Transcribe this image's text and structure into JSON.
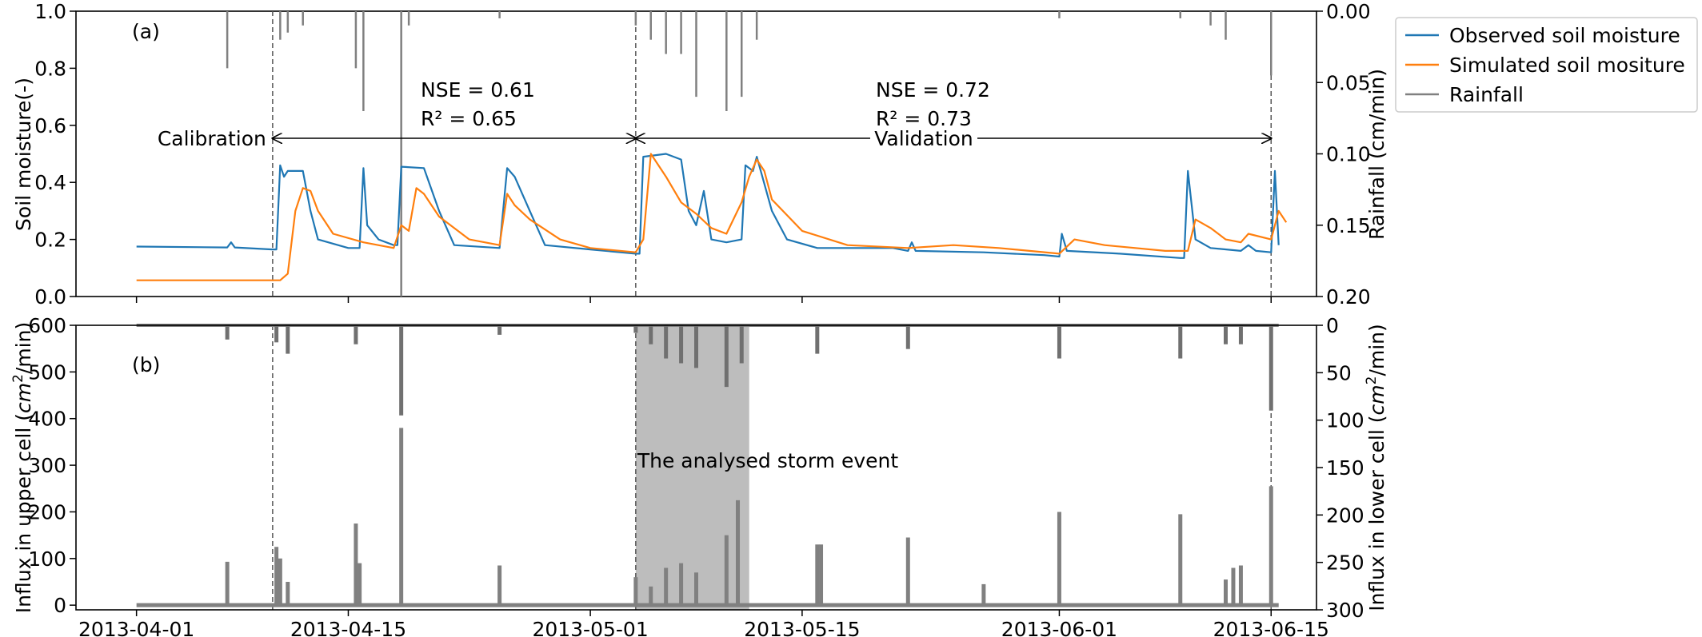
{
  "chart_data": [
    {
      "type": "line",
      "panel_label": "(a)",
      "ylabel": "Soil moisture(-)",
      "ylabel_right": "Rainfall (cm/min)",
      "xlim": [
        "2013-03-28",
        "2013-06-18"
      ],
      "ylim": [
        0,
        1.0
      ],
      "ylim_right": [
        0.2,
        0.0
      ],
      "right_axis_inverted": true,
      "x_ticks": [
        "2013-04-01",
        "2013-04-15",
        "2013-05-01",
        "2013-05-15",
        "2013-06-01",
        "2013-06-15"
      ],
      "y_ticks": [
        "0.0",
        "0.2",
        "0.4",
        "0.6",
        "0.8",
        "1.0"
      ],
      "y_ticks_right": [
        "0.00",
        "0.05",
        "0.10",
        "0.15",
        "0.20"
      ],
      "grid": false,
      "legend_position": "outside-top-right",
      "vlines_dashed": [
        "2013-04-10",
        "2013-05-04",
        "2013-06-15"
      ],
      "annotations": {
        "calibration": "Calibration",
        "validation": "Validation",
        "nse_cal": "NSE = 0.61",
        "r2_cal": "R² = 0.65",
        "nse_val": "NSE = 0.72",
        "r2_val": "R² = 0.73"
      },
      "series": [
        {
          "name": "Observed soil moisture",
          "color": "#1f77b4",
          "points": [
            [
              "2013-04-01",
              0.175
            ],
            [
              "2013-04-07",
              0.172
            ],
            [
              "2013-04-07T06",
              0.19
            ],
            [
              "2013-04-07T12",
              0.172
            ],
            [
              "2013-04-10",
              0.165
            ],
            [
              "2013-04-10T06",
              0.165
            ],
            [
              "2013-04-10T12",
              0.46
            ],
            [
              "2013-04-10T18",
              0.42
            ],
            [
              "2013-04-11",
              0.44
            ],
            [
              "2013-04-12",
              0.44
            ],
            [
              "2013-04-12T12",
              0.3
            ],
            [
              "2013-04-13",
              0.2
            ],
            [
              "2013-04-15",
              0.17
            ],
            [
              "2013-04-15T18",
              0.17
            ],
            [
              "2013-04-16",
              0.45
            ],
            [
              "2013-04-16T06",
              0.25
            ],
            [
              "2013-04-17",
              0.2
            ],
            [
              "2013-04-18",
              0.18
            ],
            [
              "2013-04-18T06",
              0.18
            ],
            [
              "2013-04-18T12",
              0.455
            ],
            [
              "2013-04-20",
              0.45
            ],
            [
              "2013-04-21",
              0.3
            ],
            [
              "2013-04-22",
              0.18
            ],
            [
              "2013-04-25",
              0.17
            ],
            [
              "2013-04-25T12",
              0.45
            ],
            [
              "2013-04-26",
              0.42
            ],
            [
              "2013-04-27",
              0.3
            ],
            [
              "2013-04-28",
              0.18
            ],
            [
              "2013-05-01",
              0.165
            ],
            [
              "2013-05-04",
              0.15
            ],
            [
              "2013-05-04T06",
              0.15
            ],
            [
              "2013-05-04T12",
              0.49
            ],
            [
              "2013-05-06",
              0.5
            ],
            [
              "2013-05-07",
              0.48
            ],
            [
              "2013-05-07T12",
              0.3
            ],
            [
              "2013-05-08",
              0.25
            ],
            [
              "2013-05-08T12",
              0.37
            ],
            [
              "2013-05-09",
              0.2
            ],
            [
              "2013-05-10",
              0.19
            ],
            [
              "2013-05-11",
              0.2
            ],
            [
              "2013-05-11T06",
              0.46
            ],
            [
              "2013-05-11T18",
              0.44
            ],
            [
              "2013-05-12",
              0.49
            ],
            [
              "2013-05-13",
              0.3
            ],
            [
              "2013-05-14",
              0.2
            ],
            [
              "2013-05-16",
              0.17
            ],
            [
              "2013-05-21",
              0.17
            ],
            [
              "2013-05-22",
              0.16
            ],
            [
              "2013-05-22T06",
              0.19
            ],
            [
              "2013-05-22T12",
              0.16
            ],
            [
              "2013-05-27",
              0.155
            ],
            [
              "2013-05-31",
              0.145
            ],
            [
              "2013-06-01",
              0.14
            ],
            [
              "2013-06-01T04",
              0.22
            ],
            [
              "2013-06-01T12",
              0.16
            ],
            [
              "2013-06-05",
              0.15
            ],
            [
              "2013-06-09",
              0.135
            ],
            [
              "2013-06-09T06",
              0.135
            ],
            [
              "2013-06-09T12",
              0.44
            ],
            [
              "2013-06-10",
              0.2
            ],
            [
              "2013-06-11",
              0.17
            ],
            [
              "2013-06-13",
              0.16
            ],
            [
              "2013-06-13T12",
              0.18
            ],
            [
              "2013-06-14",
              0.16
            ],
            [
              "2013-06-15",
              0.155
            ],
            [
              "2013-06-15T06",
              0.44
            ],
            [
              "2013-06-15T12",
              0.18
            ]
          ]
        },
        {
          "name": "Simulated soil mositure",
          "color": "#ff7f0e",
          "points": [
            [
              "2013-04-01",
              0.057
            ],
            [
              "2013-04-10T12",
              0.057
            ],
            [
              "2013-04-11",
              0.08
            ],
            [
              "2013-04-11T12",
              0.3
            ],
            [
              "2013-04-12",
              0.38
            ],
            [
              "2013-04-12T12",
              0.37
            ],
            [
              "2013-04-13",
              0.3
            ],
            [
              "2013-04-14",
              0.22
            ],
            [
              "2013-04-16",
              0.19
            ],
            [
              "2013-04-18",
              0.17
            ],
            [
              "2013-04-18T12",
              0.25
            ],
            [
              "2013-04-19",
              0.23
            ],
            [
              "2013-04-19T12",
              0.38
            ],
            [
              "2013-04-20",
              0.36
            ],
            [
              "2013-04-21",
              0.28
            ],
            [
              "2013-04-23",
              0.2
            ],
            [
              "2013-04-25",
              0.18
            ],
            [
              "2013-04-25T12",
              0.36
            ],
            [
              "2013-04-26",
              0.32
            ],
            [
              "2013-04-27",
              0.27
            ],
            [
              "2013-04-29",
              0.2
            ],
            [
              "2013-05-01",
              0.17
            ],
            [
              "2013-05-04",
              0.155
            ],
            [
              "2013-05-04T12",
              0.2
            ],
            [
              "2013-05-05",
              0.5
            ],
            [
              "2013-05-06",
              0.42
            ],
            [
              "2013-05-07",
              0.33
            ],
            [
              "2013-05-08",
              0.29
            ],
            [
              "2013-05-09",
              0.24
            ],
            [
              "2013-05-10",
              0.22
            ],
            [
              "2013-05-11",
              0.33
            ],
            [
              "2013-05-11T12",
              0.42
            ],
            [
              "2013-05-12",
              0.48
            ],
            [
              "2013-05-12T12",
              0.44
            ],
            [
              "2013-05-13",
              0.34
            ],
            [
              "2013-05-15",
              0.23
            ],
            [
              "2013-05-18",
              0.18
            ],
            [
              "2013-05-22",
              0.17
            ],
            [
              "2013-05-25",
              0.18
            ],
            [
              "2013-05-28",
              0.17
            ],
            [
              "2013-06-01",
              0.15
            ],
            [
              "2013-06-02",
              0.2
            ],
            [
              "2013-06-04",
              0.18
            ],
            [
              "2013-06-08",
              0.16
            ],
            [
              "2013-06-09T12",
              0.16
            ],
            [
              "2013-06-10",
              0.27
            ],
            [
              "2013-06-11",
              0.24
            ],
            [
              "2013-06-12",
              0.2
            ],
            [
              "2013-06-13",
              0.19
            ],
            [
              "2013-06-13T12",
              0.22
            ],
            [
              "2013-06-15",
              0.2
            ],
            [
              "2013-06-15T12",
              0.3
            ],
            [
              "2013-06-16",
              0.26
            ]
          ]
        },
        {
          "name": "Rainfall",
          "color": "#808080",
          "axis": "right",
          "units": "cm/min",
          "events": [
            [
              "2013-04-07",
              0.04
            ],
            [
              "2013-04-10T12",
              0.02
            ],
            [
              "2013-04-11",
              0.015
            ],
            [
              "2013-04-12",
              0.01
            ],
            [
              "2013-04-15T12",
              0.04
            ],
            [
              "2013-04-16",
              0.07
            ],
            [
              "2013-04-18T12",
              0.2
            ],
            [
              "2013-04-19",
              0.01
            ],
            [
              "2013-04-25",
              0.005
            ],
            [
              "2013-05-04",
              0.01
            ],
            [
              "2013-05-05",
              0.02
            ],
            [
              "2013-05-06",
              0.03
            ],
            [
              "2013-05-07",
              0.03
            ],
            [
              "2013-05-08",
              0.06
            ],
            [
              "2013-05-10",
              0.07
            ],
            [
              "2013-05-11",
              0.06
            ],
            [
              "2013-05-12",
              0.02
            ],
            [
              "2013-06-01",
              0.005
            ],
            [
              "2013-06-09",
              0.005
            ],
            [
              "2013-06-11",
              0.01
            ],
            [
              "2013-06-12",
              0.02
            ],
            [
              "2013-06-15",
              0.045
            ]
          ]
        }
      ]
    },
    {
      "type": "bar",
      "panel_label": "(b)",
      "ylabel": "Influx in upper cell (cm²/min)",
      "ylabel_right": "Influx in lower cell (cm²/min)",
      "xlim": [
        "2013-03-28",
        "2013-06-18"
      ],
      "ylim": [
        -10,
        600
      ],
      "ylim_right": [
        300,
        0
      ],
      "right_axis_inverted": true,
      "x_ticks": [
        "2013-04-01",
        "2013-04-15",
        "2013-05-01",
        "2013-05-15",
        "2013-06-01",
        "2013-06-15"
      ],
      "y_ticks": [
        "0",
        "100",
        "200",
        "300",
        "400",
        "500",
        "600"
      ],
      "y_ticks_right": [
        "0",
        "50",
        "100",
        "150",
        "200",
        "250",
        "300"
      ],
      "grid": false,
      "vlines_dashed": [
        "2013-04-10",
        "2013-05-04",
        "2013-06-15"
      ],
      "highlight": {
        "from": "2013-05-04",
        "to": "2013-05-11T12",
        "label": "The analysed storm event"
      },
      "series": [
        {
          "name": "Influx in upper cell",
          "color": "#808080",
          "events": [
            [
              "2013-04-07",
              93
            ],
            [
              "2013-04-10T06",
              125
            ],
            [
              "2013-04-10T12",
              100
            ],
            [
              "2013-04-11",
              50
            ],
            [
              "2013-04-15T12",
              175
            ],
            [
              "2013-04-15T18",
              90
            ],
            [
              "2013-04-18T12",
              380
            ],
            [
              "2013-04-25",
              85
            ],
            [
              "2013-05-04",
              60
            ],
            [
              "2013-05-05",
              40
            ],
            [
              "2013-05-06",
              80
            ],
            [
              "2013-05-07",
              90
            ],
            [
              "2013-05-08",
              70
            ],
            [
              "2013-05-10",
              150
            ],
            [
              "2013-05-10T18",
              225
            ],
            [
              "2013-05-16",
              130
            ],
            [
              "2013-05-16T06",
              130
            ],
            [
              "2013-05-22",
              145
            ],
            [
              "2013-05-27",
              45
            ],
            [
              "2013-06-01",
              200
            ],
            [
              "2013-06-09",
              195
            ],
            [
              "2013-06-12",
              55
            ],
            [
              "2013-06-12T12",
              80
            ],
            [
              "2013-06-13",
              85
            ],
            [
              "2013-06-15",
              255
            ]
          ]
        },
        {
          "name": "Influx in lower cell",
          "color": "#808080",
          "axis": "right",
          "events": [
            [
              "2013-04-07",
              15
            ],
            [
              "2013-04-10T06",
              18
            ],
            [
              "2013-04-11",
              30
            ],
            [
              "2013-04-15T12",
              20
            ],
            [
              "2013-04-18T12",
              95
            ],
            [
              "2013-04-25",
              10
            ],
            [
              "2013-05-04",
              8
            ],
            [
              "2013-05-05",
              20
            ],
            [
              "2013-05-06",
              35
            ],
            [
              "2013-05-07",
              40
            ],
            [
              "2013-05-08",
              45
            ],
            [
              "2013-05-10",
              65
            ],
            [
              "2013-05-11",
              40
            ],
            [
              "2013-05-16",
              30
            ],
            [
              "2013-05-22",
              25
            ],
            [
              "2013-06-01",
              35
            ],
            [
              "2013-06-09",
              35
            ],
            [
              "2013-06-12",
              20
            ],
            [
              "2013-06-13",
              20
            ],
            [
              "2013-06-15",
              90
            ]
          ]
        }
      ]
    }
  ]
}
